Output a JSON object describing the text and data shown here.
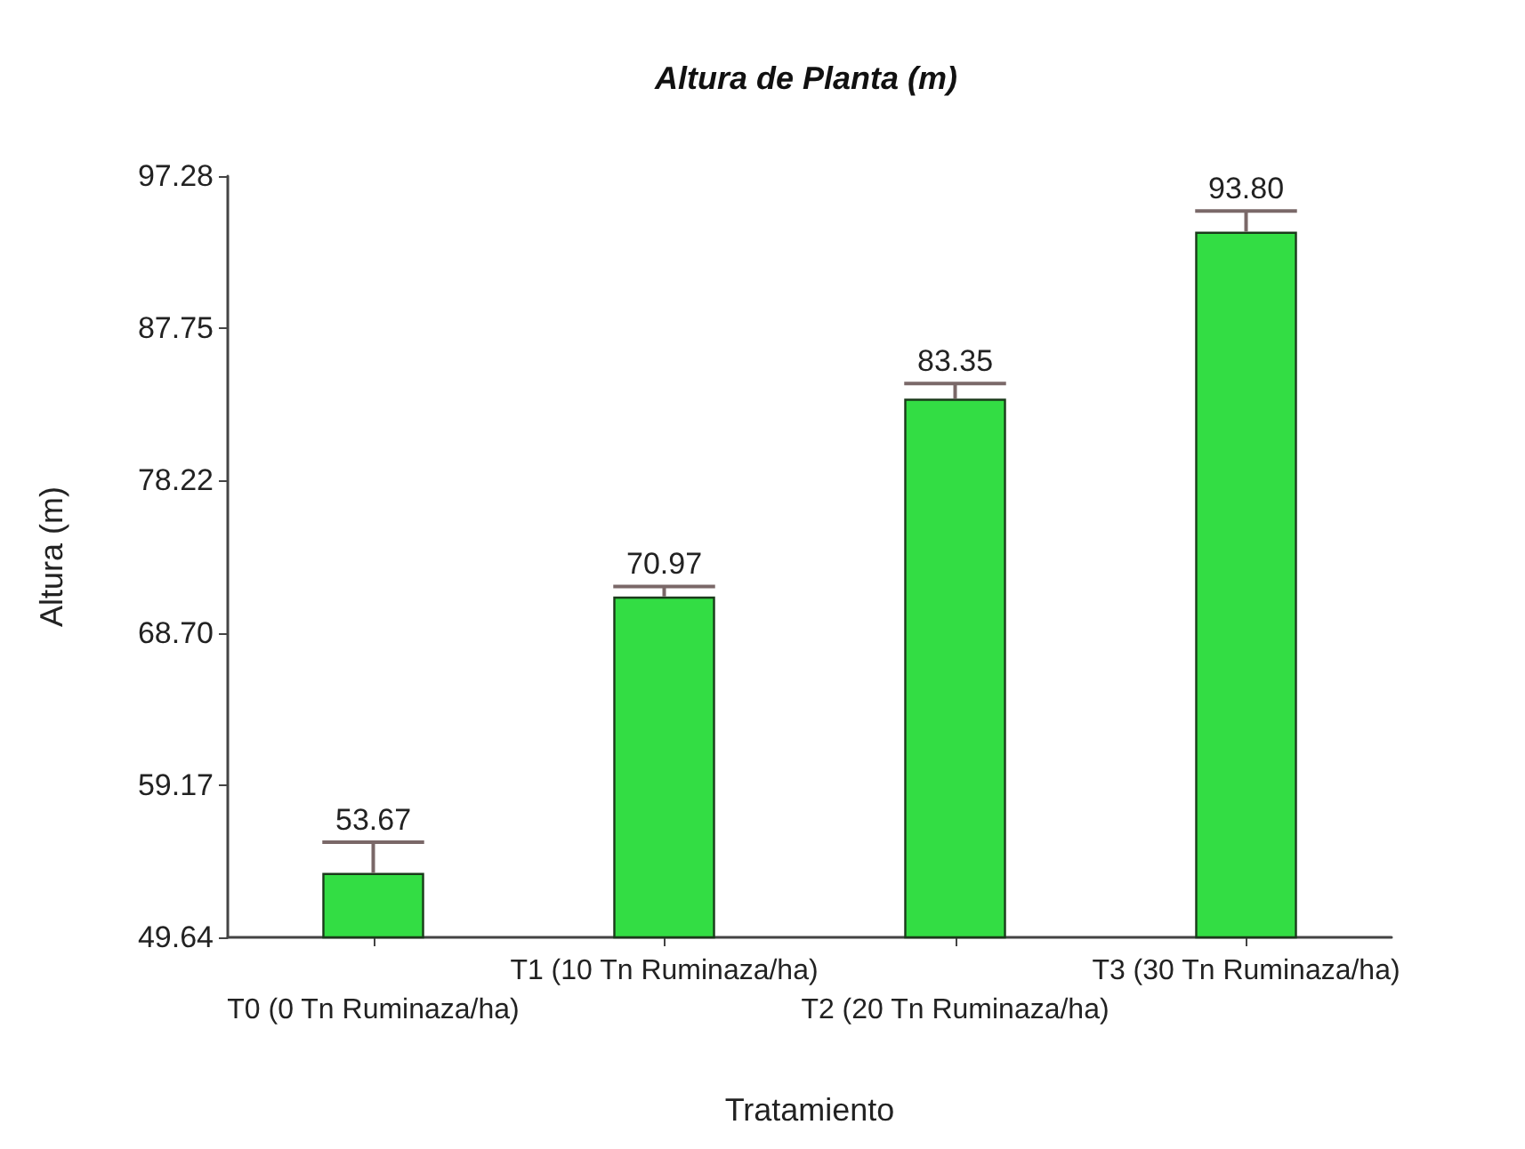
{
  "chart_data": {
    "type": "bar",
    "title": "Altura de Planta (m)",
    "xlabel": "Tratamiento",
    "ylabel": "Altura (m)",
    "categories": [
      "T0 (0 Tn Ruminaza/ha)",
      "T1 (10 Tn Ruminaza/ha)",
      "T2 (20 Tn Ruminaza/ha)",
      "T3 (30 Tn Ruminaza/ha)"
    ],
    "values": [
      53.67,
      70.97,
      83.35,
      93.8
    ],
    "value_labels": [
      "53.67",
      "70.97",
      "83.35",
      "93.80"
    ],
    "errors": [
      [
        53.67,
        55.6
      ],
      [
        70.97,
        71.6
      ],
      [
        83.35,
        84.3
      ],
      [
        93.8,
        95.1
      ]
    ],
    "color": "#33dd44",
    "ylim": [
      49.64,
      97.28
    ],
    "yticks": [
      {
        "value": 49.64,
        "label": "49.64"
      },
      {
        "value": 59.17,
        "label": "59.17"
      },
      {
        "value": 68.7,
        "label": "68.70"
      },
      {
        "value": 78.22,
        "label": "78.22"
      },
      {
        "value": 87.75,
        "label": "87.75"
      },
      {
        "value": 97.28,
        "label": "97.28"
      }
    ],
    "grid": false
  }
}
